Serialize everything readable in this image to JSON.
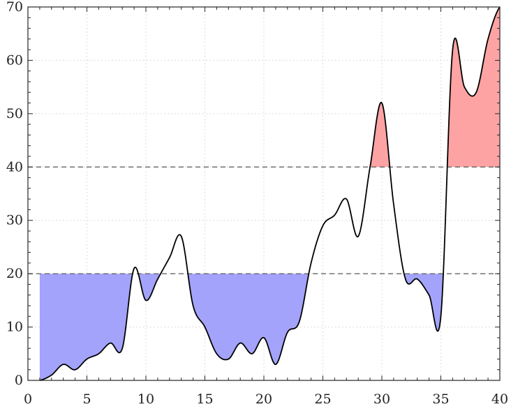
{
  "chart_data": {
    "type": "line",
    "title": "",
    "xlabel": "",
    "ylabel": "",
    "xlim": [
      1,
      40
    ],
    "ylim": [
      0,
      70
    ],
    "x_ticks": [
      0,
      5,
      10,
      15,
      20,
      25,
      30,
      35,
      40
    ],
    "x_tick_labels": [
      "0",
      "5",
      "10",
      "15",
      "20",
      "25",
      "30",
      "35",
      "40"
    ],
    "y_ticks": [
      0,
      10,
      20,
      30,
      40,
      50,
      60,
      70
    ],
    "y_tick_labels": [
      "0",
      "10",
      "20",
      "30",
      "40",
      "50",
      "60",
      "70"
    ],
    "grid": true,
    "legend": "none",
    "thresholds": {
      "lower": 20,
      "upper": 40
    },
    "series": [
      {
        "x": [
          1,
          2,
          3,
          4,
          5,
          6,
          7,
          8,
          9,
          10,
          11,
          12,
          13,
          14,
          15,
          16,
          17,
          18,
          19,
          20,
          21,
          22,
          23,
          24,
          25,
          26,
          27,
          28,
          29,
          30,
          31,
          32,
          33,
          34,
          35,
          36,
          37,
          38,
          39,
          40
        ],
        "values": [
          0,
          1,
          3,
          2,
          4,
          5,
          7,
          6,
          21,
          15,
          19,
          23,
          27,
          14,
          10,
          5,
          4,
          7,
          5,
          8,
          3,
          9,
          11,
          22,
          29,
          31,
          34,
          27,
          40,
          52,
          33,
          19,
          19,
          16,
          12,
          62,
          55,
          54,
          64,
          70
        ]
      }
    ],
    "colors": {
      "line": "#000000",
      "below_fill": "#a3a3fb",
      "above_fill": "#fda3a3",
      "threshold_line": "#666666",
      "grid": "#dcdcdc"
    }
  }
}
